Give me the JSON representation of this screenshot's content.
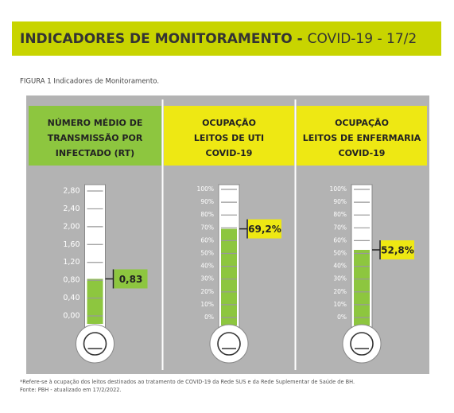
{
  "header": {
    "title": "INDICADORES DE MONITORAMENTO - ",
    "subtitle": "COVID-19 - 17/2"
  },
  "caption": "FIGURA 1 Indicadores de Monitoramento.",
  "footnote": "*Refere-se à ocupação dos leitos destinados ao tratamento de COVID-19 da Rede SUS e da Rede Suplementar de Saúde de BH.",
  "source": "Fonte: PBH - atualizado em 17/2/2022.",
  "chart_data": [
    {
      "type": "thermometer",
      "title": [
        "NÚMERO MÉDIO DE",
        "TRANSMISSÃO POR",
        "INFECTADO (RT)"
      ],
      "header_color": "#8dc63f",
      "value": 0.83,
      "value_label": "0,83",
      "color": "#8dc63f",
      "label_color": "#8dc63f",
      "ylim": [
        0,
        2.8
      ],
      "yticks": [
        {
          "value": 0,
          "label": "0,00"
        },
        {
          "value": 0.4,
          "label": "0,40"
        },
        {
          "value": 0.8,
          "label": "0,80"
        },
        {
          "value": 1.2,
          "label": "1,20"
        },
        {
          "value": 1.6,
          "label": "1,60"
        },
        {
          "value": 2,
          "label": "2,00"
        },
        {
          "value": 2.4,
          "label": "2,40"
        },
        {
          "value": 2.8,
          "label": "2,80"
        }
      ]
    },
    {
      "type": "thermometer",
      "title": [
        "OCUPAÇÃO",
        "LEITOS DE UTI",
        "COVID-19"
      ],
      "header_color": "#eee813",
      "value": 69.2,
      "value_label": "69,2%",
      "color": "#8dc63f",
      "label_color": "#eee813",
      "ylim": [
        0,
        100
      ],
      "yticks": [
        {
          "value": 0,
          "label": "0%"
        },
        {
          "value": 10,
          "label": "10%"
        },
        {
          "value": 20,
          "label": "20%"
        },
        {
          "value": 30,
          "label": "30%"
        },
        {
          "value": 40,
          "label": "40%"
        },
        {
          "value": 50,
          "label": "50%"
        },
        {
          "value": 60,
          "label": "60%"
        },
        {
          "value": 70,
          "label": "70%"
        },
        {
          "value": 80,
          "label": "80%"
        },
        {
          "value": 90,
          "label": "90%"
        },
        {
          "value": 100,
          "label": "100%"
        }
      ]
    },
    {
      "type": "thermometer",
      "title": [
        "OCUPAÇÃO",
        "LEITOS DE ENFERMARIA",
        "COVID-19"
      ],
      "header_color": "#eee813",
      "value": 52.8,
      "value_label": "52,8%",
      "color": "#8dc63f",
      "label_color": "#eee813",
      "ylim": [
        0,
        100
      ],
      "yticks": [
        {
          "value": 0,
          "label": "0%"
        },
        {
          "value": 10,
          "label": "10%"
        },
        {
          "value": 20,
          "label": "20%"
        },
        {
          "value": 30,
          "label": "30%"
        },
        {
          "value": 40,
          "label": "40%"
        },
        {
          "value": 50,
          "label": "50%"
        },
        {
          "value": 60,
          "label": "60%"
        },
        {
          "value": 70,
          "label": "70%"
        },
        {
          "value": 80,
          "label": "80%"
        },
        {
          "value": 90,
          "label": "90%"
        },
        {
          "value": 100,
          "label": "100%"
        }
      ]
    }
  ]
}
